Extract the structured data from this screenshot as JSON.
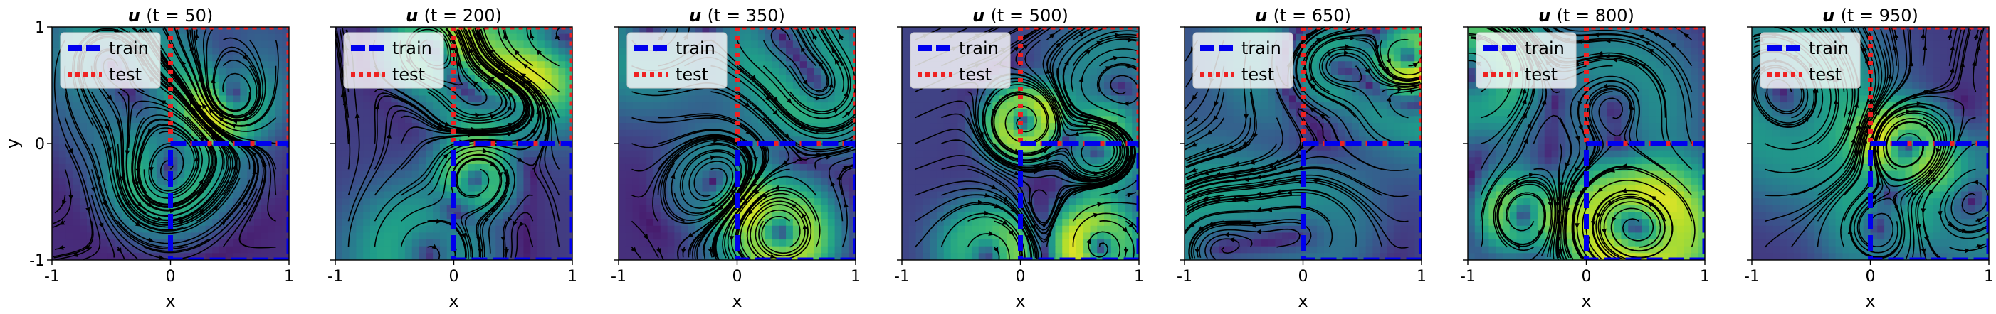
{
  "chart_data": {
    "type": "heatmap",
    "overlay": "streamlines",
    "colormap": "viridis",
    "xlabel": "x",
    "ylabel": "y",
    "xlim": [
      -1,
      1
    ],
    "ylim": [
      -1,
      1
    ],
    "xticks": [
      "-1",
      "0",
      "1"
    ],
    "yticks": [
      "-1",
      "0",
      "1"
    ],
    "legend": {
      "placement": "top-left",
      "entries": [
        {
          "label": "train",
          "color": "#0000ee",
          "style": "dashed",
          "region": "x in [0,1], y in [-1,0]"
        },
        {
          "label": "test",
          "color": "#ee2222",
          "style": "dotted",
          "region": "x in [0,1], y in [0,1] and x in [-1,0]"
        }
      ]
    },
    "panels": [
      {
        "title_var": "u",
        "title_time": "(t = 50)"
      },
      {
        "title_var": "u",
        "title_time": "(t = 200)"
      },
      {
        "title_var": "u",
        "title_time": "(t = 350)"
      },
      {
        "title_var": "u",
        "title_time": "(t = 500)"
      },
      {
        "title_var": "u",
        "title_time": "(t = 650)"
      },
      {
        "title_var": "u",
        "title_time": "(t = 800)"
      },
      {
        "title_var": "u",
        "title_time": "(t = 950)"
      }
    ]
  }
}
